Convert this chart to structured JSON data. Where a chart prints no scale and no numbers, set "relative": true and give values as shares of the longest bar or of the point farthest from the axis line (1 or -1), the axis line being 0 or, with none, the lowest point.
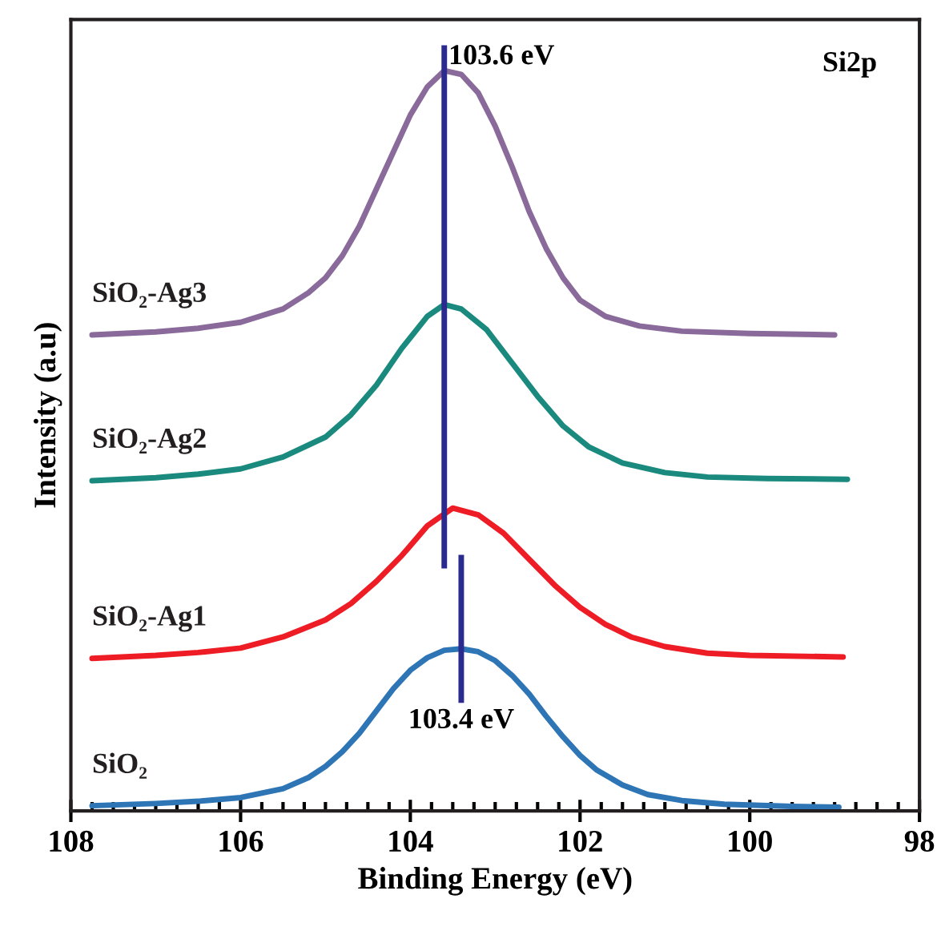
{
  "chart_data": {
    "type": "line",
    "relative": true,
    "xlabel": "Binding Energy (eV)",
    "ylabel": "Intensity (a.u)",
    "xlim": [
      108,
      98
    ],
    "xticks": [
      108,
      106,
      104,
      102,
      100,
      98
    ],
    "grid": false,
    "legend": false,
    "marker": "none",
    "line_style": "solid",
    "tick_labels": "x",
    "series": [
      {
        "name": "SiO₂",
        "color": "#2e75b6",
        "x": [
          107.75,
          107,
          106.5,
          106,
          105.5,
          105.2,
          105,
          104.8,
          104.6,
          104.4,
          104.2,
          104,
          103.8,
          103.6,
          103.4,
          103.2,
          103,
          102.8,
          102.6,
          102.4,
          102.2,
          102,
          101.8,
          101.5,
          101.2,
          100.8,
          100.3,
          99.5,
          98.95
        ],
        "values": [
          0.007,
          0.01,
          0.013,
          0.018,
          0.03,
          0.045,
          0.06,
          0.08,
          0.105,
          0.135,
          0.165,
          0.19,
          0.207,
          0.217,
          0.219,
          0.215,
          0.203,
          0.183,
          0.158,
          0.128,
          0.1,
          0.075,
          0.055,
          0.035,
          0.022,
          0.014,
          0.009,
          0.006,
          0.005
        ]
      },
      {
        "name": "SiO₂-Ag1",
        "color": "#ee1c25",
        "x": [
          107.75,
          107,
          106.5,
          106,
          105.5,
          105,
          104.7,
          104.4,
          104.1,
          103.8,
          103.5,
          103.2,
          102.9,
          102.6,
          102.3,
          102,
          101.7,
          101.4,
          101,
          100.5,
          100,
          98.9
        ],
        "values": [
          0.206,
          0.21,
          0.214,
          0.22,
          0.235,
          0.258,
          0.28,
          0.31,
          0.345,
          0.385,
          0.409,
          0.4,
          0.375,
          0.34,
          0.305,
          0.275,
          0.252,
          0.235,
          0.222,
          0.213,
          0.21,
          0.208
        ]
      },
      {
        "name": "SiO₂-Ag2",
        "color": "#1b8a7e",
        "x": [
          107.75,
          107,
          106.5,
          106,
          105.5,
          105,
          104.7,
          104.4,
          104.1,
          103.8,
          103.6,
          103.4,
          103.1,
          102.8,
          102.5,
          102.2,
          101.9,
          101.5,
          101,
          100.5,
          99.8,
          98.85
        ],
        "values": [
          0.446,
          0.45,
          0.455,
          0.462,
          0.478,
          0.505,
          0.535,
          0.575,
          0.625,
          0.668,
          0.684,
          0.678,
          0.65,
          0.605,
          0.56,
          0.52,
          0.492,
          0.47,
          0.457,
          0.451,
          0.449,
          0.448
        ]
      },
      {
        "name": "SiO₂-Ag3",
        "color": "#8a6a9a",
        "x": [
          107.75,
          107,
          106.5,
          106,
          105.5,
          105.2,
          105,
          104.8,
          104.6,
          104.4,
          104.2,
          104,
          103.8,
          103.6,
          103.4,
          103.2,
          103,
          102.8,
          102.6,
          102.4,
          102.2,
          102,
          101.7,
          101.3,
          100.8,
          100,
          99.0
        ],
        "values": [
          0.643,
          0.647,
          0.652,
          0.66,
          0.678,
          0.7,
          0.72,
          0.75,
          0.79,
          0.84,
          0.89,
          0.94,
          0.978,
          1.0,
          0.995,
          0.97,
          0.925,
          0.87,
          0.81,
          0.76,
          0.72,
          0.69,
          0.668,
          0.655,
          0.648,
          0.645,
          0.643
        ]
      }
    ],
    "ref_lines": [
      {
        "axis": "x",
        "value": 103.6,
        "label": "103.6 eV",
        "color": "#2b2a8f"
      },
      {
        "axis": "x",
        "value": 103.4,
        "label": "103.4 eV",
        "color": "#2b2a8f"
      }
    ],
    "annotations": [
      "Si2p"
    ]
  }
}
